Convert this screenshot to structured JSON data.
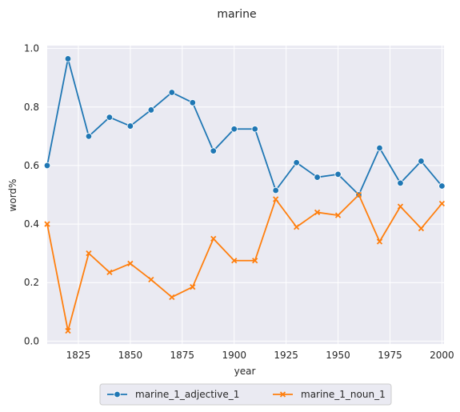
{
  "chart_data": {
    "type": "line",
    "title": "marine",
    "xlabel": "year",
    "ylabel": "word%",
    "xlim": [
      1810,
      2001
    ],
    "ylim": [
      -0.01,
      1.01
    ],
    "xticks": [
      1825,
      1850,
      1875,
      1900,
      1925,
      1950,
      1975,
      2000
    ],
    "yticks": [
      0.0,
      0.2,
      0.4,
      0.6,
      0.8,
      1.0
    ],
    "grid": true,
    "legend_position": "bottom-center",
    "x": [
      1810,
      1820,
      1830,
      1840,
      1850,
      1860,
      1870,
      1880,
      1890,
      1900,
      1910,
      1920,
      1930,
      1940,
      1950,
      1960,
      1970,
      1980,
      1990,
      2000
    ],
    "series": [
      {
        "name": "marine_1_adjective_1",
        "color": "#1f77b4",
        "marker": "circle",
        "values": [
          0.6,
          0.965,
          0.7,
          0.765,
          0.735,
          0.79,
          0.85,
          0.815,
          0.65,
          0.725,
          0.725,
          0.515,
          0.61,
          0.56,
          0.57,
          0.5,
          0.66,
          0.54,
          0.615,
          0.53
        ]
      },
      {
        "name": "marine_1_noun_1",
        "color": "#ff7f0e",
        "marker": "x",
        "values": [
          0.4,
          0.035,
          0.3,
          0.235,
          0.265,
          0.21,
          0.15,
          0.185,
          0.35,
          0.275,
          0.275,
          0.485,
          0.39,
          0.44,
          0.43,
          0.5,
          0.34,
          0.46,
          0.385,
          0.47
        ]
      }
    ]
  }
}
